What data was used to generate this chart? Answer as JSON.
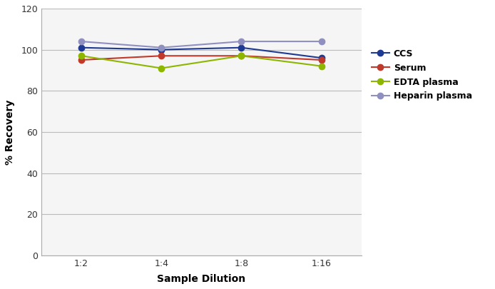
{
  "x_labels": [
    "1:2",
    "1:4",
    "1:8",
    "1:16"
  ],
  "x_positions": [
    1,
    2,
    3,
    4
  ],
  "series": [
    {
      "label": "CCS",
      "color": "#1F3A93",
      "marker": "o",
      "values": [
        101,
        100,
        101,
        96
      ]
    },
    {
      "label": "Serum",
      "color": "#C0392B",
      "marker": "o",
      "values": [
        95,
        97,
        97,
        95
      ]
    },
    {
      "label": "EDTA plasma",
      "color": "#8DB600",
      "marker": "o",
      "values": [
        97,
        91,
        97,
        92
      ]
    },
    {
      "label": "Heparin plasma",
      "color": "#9090C0",
      "marker": "o",
      "values": [
        104,
        101,
        104,
        104
      ]
    }
  ],
  "ylabel": "% Recovery",
  "xlabel": "Sample Dilution",
  "ylim": [
    0,
    120
  ],
  "yticks": [
    0,
    20,
    40,
    60,
    80,
    100,
    120
  ],
  "background_color": "#ffffff",
  "plot_bg_color": "#f5f5f5",
  "grid_color": "#bbbbbb",
  "spine_color": "#aaaaaa",
  "tick_fontsize": 9,
  "label_fontsize": 10,
  "legend_fontsize": 9,
  "markersize": 6,
  "linewidth": 1.5
}
